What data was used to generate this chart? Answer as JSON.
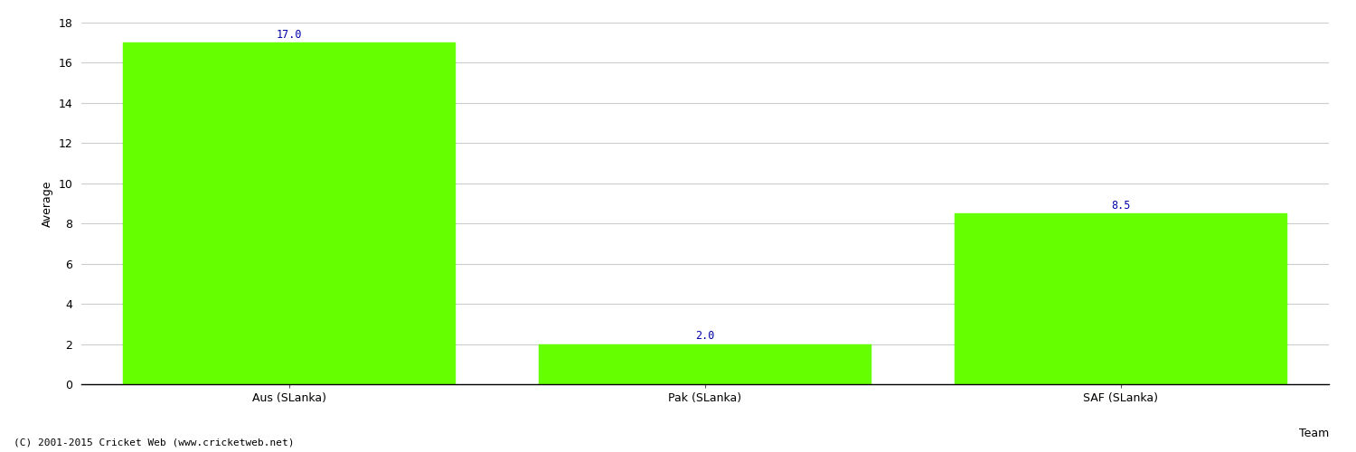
{
  "categories": [
    "Aus (SLanka)",
    "Pak (SLanka)",
    "SAF (SLanka)"
  ],
  "values": [
    17.0,
    2.0,
    8.5
  ],
  "bar_color": "#66ff00",
  "bar_edgecolor": "#66ff00",
  "label_color": "#0000aa",
  "xlabel": "Team",
  "ylabel": "Average",
  "ylim": [
    0,
    18
  ],
  "yticks": [
    0,
    2,
    4,
    6,
    8,
    10,
    12,
    14,
    16,
    18
  ],
  "grid_color": "#cccccc",
  "background_color": "#ffffff",
  "footnote": "(C) 2001-2015 Cricket Web (www.cricketweb.net)",
  "label_fontsize": 8.5,
  "axis_label_fontsize": 9,
  "tick_fontsize": 9,
  "footnote_fontsize": 8,
  "bar_width": 0.8
}
